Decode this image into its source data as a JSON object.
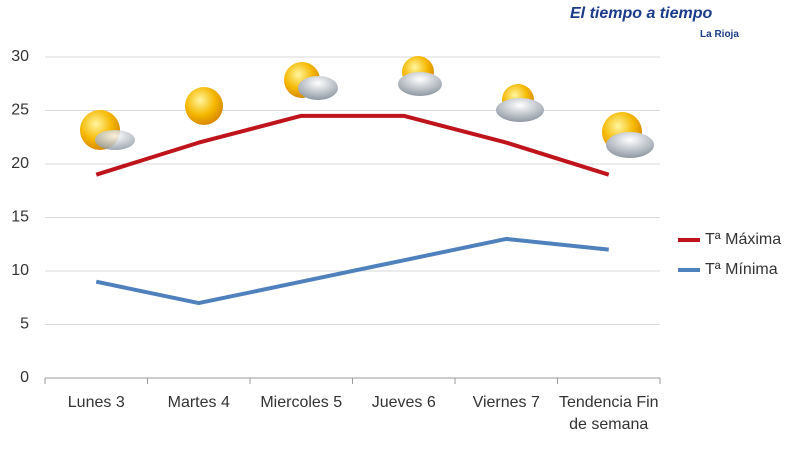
{
  "header": {
    "logo": "El tiempo a tiempo",
    "region": "La Rioja"
  },
  "chart_data": {
    "type": "line",
    "categories": [
      "Lunes 3",
      "Martes 4",
      "Miercoles 5",
      "Jueves 6",
      "Viernes 7",
      "Tendencia Fin de semana"
    ],
    "series": [
      {
        "name": "Tª Máxima",
        "color": "#c0141c",
        "values": [
          19,
          22,
          24.5,
          24.5,
          22,
          19
        ]
      },
      {
        "name": "Tª Mínima",
        "color": "#4f81bd",
        "values": [
          9,
          7,
          9,
          11,
          13,
          12
        ]
      }
    ],
    "ylim": [
      0,
      30
    ],
    "yticks": [
      0,
      5,
      10,
      15,
      20,
      25,
      30
    ],
    "grid": true,
    "legend": "right"
  }
}
